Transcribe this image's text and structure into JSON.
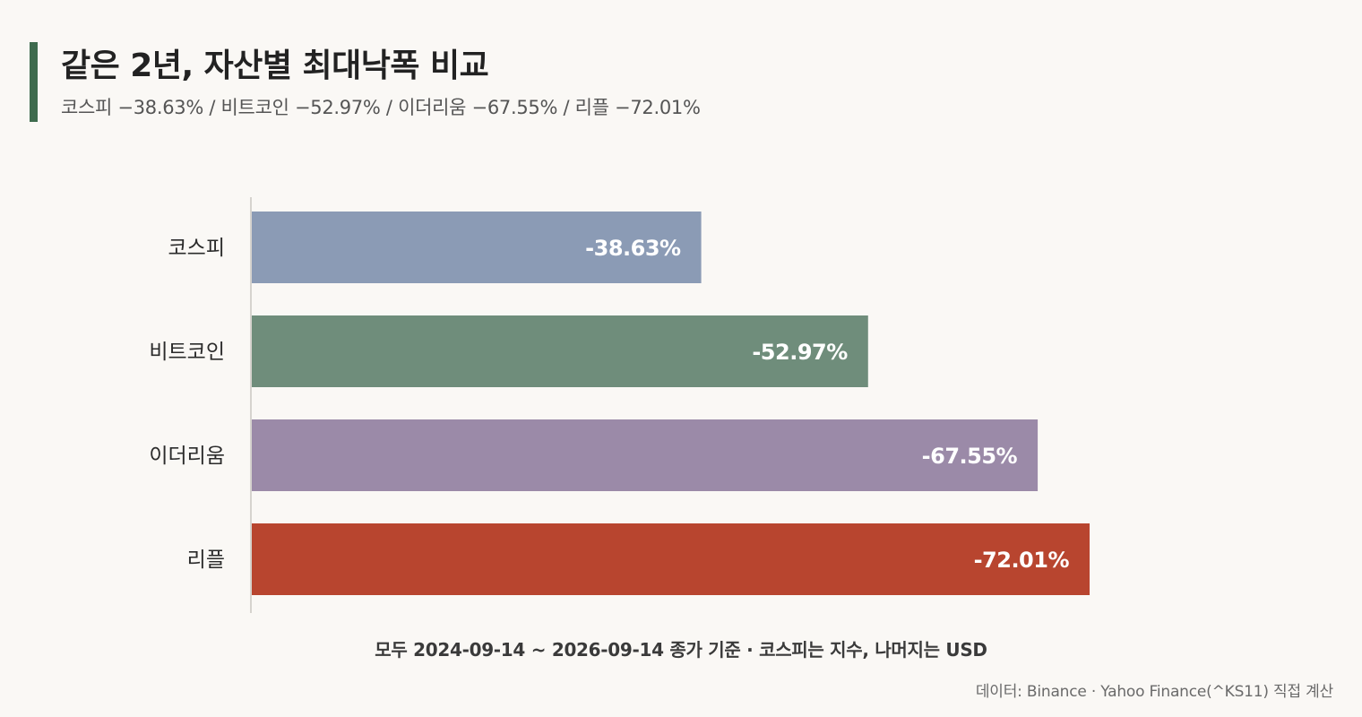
{
  "header": {
    "title": "같은 2년, 자산별 최대낙폭 비교",
    "subtitle": "코스피 −38.63% / 비트코인 −52.97% / 이더리움 −67.55% / 리플 −72.01%"
  },
  "footer": {
    "axis_note": "모두 2024-09-14 ~ 2026-09-14 종가 기준 · 코스피는 지수, 나머지는 USD",
    "source": "데이터: Binance · Yahoo Finance(^KS11) 직접 계산"
  },
  "colors": {
    "accent": "#3e6b4e",
    "background": "#faf8f5"
  },
  "chart_data": {
    "type": "bar",
    "orientation": "horizontal",
    "categories": [
      "코스피",
      "비트코인",
      "이더리움",
      "리플"
    ],
    "values": [
      -38.63,
      -52.97,
      -67.55,
      -72.01
    ],
    "labels": [
      "-38.63%",
      "-52.97%",
      "-67.55%",
      "-72.01%"
    ],
    "colors": [
      "#8b9bb5",
      "#6f8d7b",
      "#9b8aa8",
      "#b8452f"
    ],
    "title": "같은 2년, 자산별 최대낙폭 비교",
    "xlabel": "모두 2024-09-14 ~ 2026-09-14 종가 기준 · 코스피는 지수, 나머지는 USD",
    "ylabel": "",
    "xlim": [
      0,
      -72.01
    ],
    "grid": false,
    "legend": "none"
  }
}
